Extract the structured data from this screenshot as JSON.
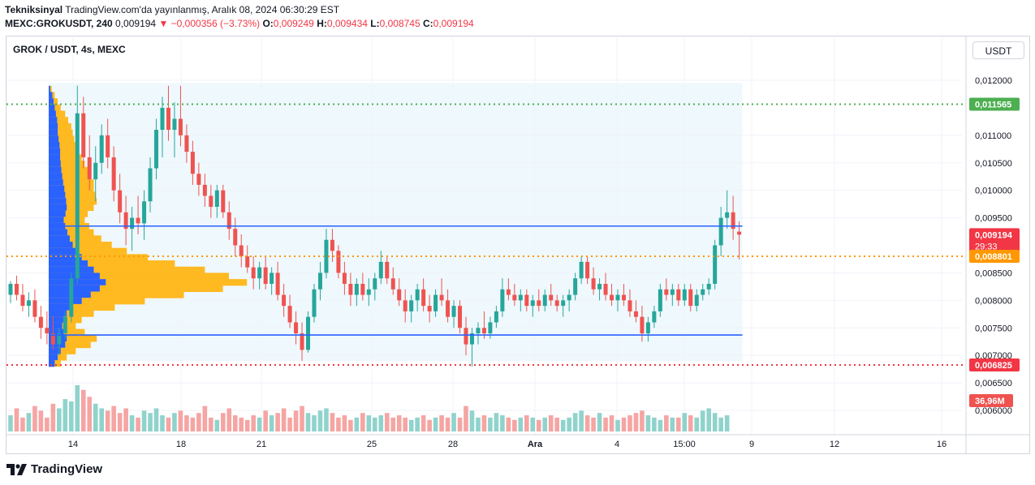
{
  "header": {
    "line1_author": "Tekniksinyal",
    "line1_rest": "TradingView.com'da yayınlanmış, Aralık 08, 2024 06:30:29 EST",
    "symbol_full": "MEXC:GROKUSDT, 240",
    "last": "0,009194",
    "change": "▼ −0,000356 (−3.73%)",
    "o_label": "O:",
    "o": "0,009249",
    "h_label": "H:",
    "h": "0,009434",
    "l_label": "L:",
    "l": "0,008745",
    "c_label": "C:",
    "c": "0,009194"
  },
  "chart_title": "GROK / USDT, 4s, MEXC",
  "currency_button": "USDT",
  "brand": "TradingView",
  "colors": {
    "up": "#26a69a",
    "down": "#ef5350",
    "vol_up": "#8fd3cc",
    "vol_down": "#f5a5a3",
    "profile_blue": "#2962ff",
    "profile_orange": "#ffb921",
    "green_line": "#4caf50",
    "orange_line": "#ff9800",
    "red_line": "#f23645",
    "blue_line": "#2962ff",
    "range_bg": "#eef8fd"
  },
  "chart_data": {
    "type": "candlestick",
    "title": "GROK / USDT, 4s, MEXC",
    "x_ticks": [
      "14",
      "18",
      "21",
      "25",
      "28",
      "Ara",
      "4",
      "15:00",
      "9",
      "12",
      "16"
    ],
    "y_ticks": [
      "0,012000",
      "0,011000",
      "0,010500",
      "0,010000",
      "0,009500",
      "0,008500",
      "0,008000",
      "0,007500",
      "0,007000",
      "0,006500",
      "0,006000"
    ],
    "y_tick_values": [
      0.012,
      0.011,
      0.0105,
      0.01,
      0.0095,
      0.0085,
      0.008,
      0.0075,
      0.007,
      0.0065,
      0.006
    ],
    "ylim": [
      0.0057,
      0.0123
    ],
    "price_levels": [
      {
        "label": "0,011565",
        "value": 0.011565,
        "style": "dotted",
        "color": "#4caf50"
      },
      {
        "label": "0,009194",
        "value": 0.009194,
        "style": "current",
        "color": "#f23645"
      },
      {
        "label": "0,008801",
        "value": 0.008801,
        "style": "dotted",
        "color": "#ff9800"
      },
      {
        "label": "0,006825",
        "value": 0.006825,
        "style": "dotted",
        "color": "#f23645"
      }
    ],
    "countdown": "29:33",
    "volume_label": "36,96M",
    "range_box": {
      "top": 0.01195,
      "bottom": 0.0069
    },
    "range_lines": [
      0.00935,
      0.00737
    ],
    "volume_profile": {
      "price_min": 0.0068,
      "price_max": 0.0119,
      "poc": 0.00797,
      "blue": [
        0.05,
        0.12,
        0.16,
        0.2,
        0.24,
        0.28,
        0.3,
        0.3,
        0.33,
        0.36,
        0.38,
        0.38,
        0.4,
        0.42,
        0.45,
        0.48,
        0.52,
        0.55,
        0.58,
        0.6,
        0.56,
        0.5,
        0.55,
        0.62,
        0.7,
        0.8,
        0.92,
        1.1,
        1.3,
        1.5,
        1.7,
        1.9,
        1.7,
        1.4,
        1.1,
        0.8,
        0.6,
        0.5,
        0.45,
        0.5,
        0.6,
        0.55,
        0.4,
        0.3,
        0.2
      ],
      "orange": [
        0.1,
        0.2,
        0.3,
        0.4,
        0.55,
        0.65,
        0.75,
        0.8,
        0.85,
        0.9,
        1.0,
        1.1,
        1.2,
        1.3,
        1.4,
        1.5,
        1.5,
        1.55,
        1.6,
        1.5,
        1.3,
        1.2,
        1.35,
        1.5,
        1.75,
        2.1,
        2.6,
        3.3,
        4.2,
        5.2,
        6.0,
        6.6,
        5.8,
        4.5,
        3.2,
        2.2,
        1.5,
        1.1,
        0.9,
        1.2,
        1.6,
        1.4,
        0.9,
        0.6,
        0.4
      ]
    },
    "candles": [
      [
        0.0081,
        0.00835,
        0.00795,
        0.0083
      ],
      [
        0.0083,
        0.00845,
        0.008,
        0.0081
      ],
      [
        0.0081,
        0.0083,
        0.0078,
        0.0079
      ],
      [
        0.0079,
        0.00815,
        0.0077,
        0.008
      ],
      [
        0.008,
        0.0082,
        0.0076,
        0.0077
      ],
      [
        0.0077,
        0.0079,
        0.0073,
        0.0075
      ],
      [
        0.0075,
        0.0078,
        0.0072,
        0.0074
      ],
      [
        0.0074,
        0.0077,
        0.0071,
        0.0072
      ],
      [
        0.0072,
        0.0075,
        0.007,
        0.0074
      ],
      [
        0.0074,
        0.0078,
        0.0073,
        0.0077
      ],
      [
        0.0077,
        0.0085,
        0.0076,
        0.0084
      ],
      [
        0.0084,
        0.0119,
        0.0083,
        0.0114
      ],
      [
        0.0114,
        0.0117,
        0.0104,
        0.0106
      ],
      [
        0.0106,
        0.011,
        0.01,
        0.0102
      ],
      [
        0.0102,
        0.0108,
        0.0098,
        0.0105
      ],
      [
        0.0105,
        0.0112,
        0.0103,
        0.011
      ],
      [
        0.011,
        0.0113,
        0.0104,
        0.0106
      ],
      [
        0.0106,
        0.0108,
        0.0098,
        0.01
      ],
      [
        0.01,
        0.0103,
        0.0094,
        0.0096
      ],
      [
        0.0096,
        0.0099,
        0.009,
        0.0093
      ],
      [
        0.0093,
        0.0097,
        0.0089,
        0.0095
      ],
      [
        0.0095,
        0.0099,
        0.0092,
        0.0094
      ],
      [
        0.0094,
        0.01,
        0.0091,
        0.0098
      ],
      [
        0.0098,
        0.0106,
        0.0096,
        0.0104
      ],
      [
        0.0104,
        0.0113,
        0.0102,
        0.0111
      ],
      [
        0.0111,
        0.0117,
        0.0106,
        0.0115
      ],
      [
        0.0115,
        0.0119,
        0.0109,
        0.0111
      ],
      [
        0.0111,
        0.0116,
        0.0106,
        0.0113
      ],
      [
        0.0113,
        0.0119,
        0.0108,
        0.011
      ],
      [
        0.011,
        0.0112,
        0.0105,
        0.0107
      ],
      [
        0.0107,
        0.0109,
        0.0101,
        0.0103
      ],
      [
        0.0103,
        0.0105,
        0.0099,
        0.0101
      ],
      [
        0.0101,
        0.0103,
        0.0097,
        0.0099
      ],
      [
        0.0099,
        0.0101,
        0.0095,
        0.0097
      ],
      [
        0.0097,
        0.0101,
        0.0095,
        0.01
      ],
      [
        0.01,
        0.0101,
        0.0095,
        0.0096
      ],
      [
        0.0096,
        0.0098,
        0.0091,
        0.0093
      ],
      [
        0.0093,
        0.0095,
        0.0088,
        0.009
      ],
      [
        0.009,
        0.0092,
        0.0086,
        0.0088
      ],
      [
        0.0088,
        0.009,
        0.0085,
        0.0086
      ],
      [
        0.0086,
        0.0088,
        0.0082,
        0.0084
      ],
      [
        0.0084,
        0.0087,
        0.0082,
        0.0086
      ],
      [
        0.0086,
        0.0088,
        0.0082,
        0.0083
      ],
      [
        0.0083,
        0.0086,
        0.0081,
        0.0085
      ],
      [
        0.0085,
        0.0087,
        0.008,
        0.0081
      ],
      [
        0.0081,
        0.0083,
        0.0077,
        0.0079
      ],
      [
        0.0079,
        0.0081,
        0.0075,
        0.0076
      ],
      [
        0.0076,
        0.0078,
        0.0072,
        0.0074
      ],
      [
        0.0074,
        0.0076,
        0.0069,
        0.0071
      ],
      [
        0.0071,
        0.0078,
        0.00705,
        0.0077
      ],
      [
        0.0077,
        0.0083,
        0.0076,
        0.0082
      ],
      [
        0.0082,
        0.0087,
        0.008,
        0.0085
      ],
      [
        0.0085,
        0.0093,
        0.0084,
        0.0091
      ],
      [
        0.0091,
        0.0093,
        0.0087,
        0.0089
      ],
      [
        0.0089,
        0.009,
        0.0084,
        0.0085
      ],
      [
        0.0085,
        0.0087,
        0.0081,
        0.0083
      ],
      [
        0.0083,
        0.0085,
        0.0079,
        0.0081
      ],
      [
        0.0081,
        0.0084,
        0.0079,
        0.0083
      ],
      [
        0.0083,
        0.0085,
        0.008,
        0.0081
      ],
      [
        0.0081,
        0.0084,
        0.0079,
        0.0082
      ],
      [
        0.0082,
        0.0085,
        0.008,
        0.0084
      ],
      [
        0.0084,
        0.0089,
        0.0083,
        0.0087
      ],
      [
        0.0087,
        0.0088,
        0.0083,
        0.0084
      ],
      [
        0.0084,
        0.0086,
        0.0081,
        0.0082
      ],
      [
        0.0082,
        0.0084,
        0.0079,
        0.008
      ],
      [
        0.008,
        0.0082,
        0.0076,
        0.0078
      ],
      [
        0.0078,
        0.0081,
        0.0076,
        0.008
      ],
      [
        0.008,
        0.0083,
        0.0078,
        0.0082
      ],
      [
        0.0082,
        0.0084,
        0.0078,
        0.0079
      ],
      [
        0.0079,
        0.0081,
        0.0076,
        0.0078
      ],
      [
        0.0078,
        0.0082,
        0.0077,
        0.0081
      ],
      [
        0.0081,
        0.0084,
        0.0079,
        0.008
      ],
      [
        0.008,
        0.0082,
        0.0076,
        0.0077
      ],
      [
        0.0077,
        0.008,
        0.0075,
        0.0079
      ],
      [
        0.0079,
        0.008,
        0.0074,
        0.0075
      ],
      [
        0.0075,
        0.0077,
        0.007,
        0.0072
      ],
      [
        0.0072,
        0.0075,
        0.0068,
        0.0074
      ],
      [
        0.0074,
        0.0076,
        0.0072,
        0.0075
      ],
      [
        0.0075,
        0.0078,
        0.0073,
        0.0074
      ],
      [
        0.0074,
        0.0077,
        0.0073,
        0.0076
      ],
      [
        0.0076,
        0.0079,
        0.0075,
        0.0078
      ],
      [
        0.0078,
        0.0084,
        0.0077,
        0.0082
      ],
      [
        0.0082,
        0.0084,
        0.008,
        0.0081
      ],
      [
        0.0081,
        0.0083,
        0.0079,
        0.008
      ],
      [
        0.008,
        0.0082,
        0.0078,
        0.0081
      ],
      [
        0.0081,
        0.0082,
        0.0078,
        0.0079
      ],
      [
        0.0079,
        0.0081,
        0.0077,
        0.008
      ],
      [
        0.008,
        0.0082,
        0.0078,
        0.0079
      ],
      [
        0.0079,
        0.0082,
        0.0078,
        0.0081
      ],
      [
        0.0081,
        0.0083,
        0.0079,
        0.008
      ],
      [
        0.008,
        0.0081,
        0.0078,
        0.0079
      ],
      [
        0.0079,
        0.0081,
        0.0077,
        0.008
      ],
      [
        0.008,
        0.0082,
        0.0078,
        0.0081
      ],
      [
        0.0081,
        0.0085,
        0.008,
        0.0084
      ],
      [
        0.0084,
        0.0088,
        0.0083,
        0.0087
      ],
      [
        0.0087,
        0.0088,
        0.0083,
        0.0084
      ],
      [
        0.0084,
        0.0086,
        0.0081,
        0.0082
      ],
      [
        0.0082,
        0.0084,
        0.008,
        0.0083
      ],
      [
        0.0083,
        0.0085,
        0.008,
        0.0081
      ],
      [
        0.0081,
        0.0083,
        0.0079,
        0.008
      ],
      [
        0.008,
        0.0082,
        0.0078,
        0.0081
      ],
      [
        0.0081,
        0.0083,
        0.0079,
        0.008
      ],
      [
        0.008,
        0.0082,
        0.0077,
        0.0078
      ],
      [
        0.0078,
        0.008,
        0.0076,
        0.0077
      ],
      [
        0.0077,
        0.0079,
        0.00725,
        0.0074
      ],
      [
        0.0074,
        0.0077,
        0.00725,
        0.0076
      ],
      [
        0.0076,
        0.0079,
        0.0075,
        0.0078
      ],
      [
        0.0078,
        0.0083,
        0.0077,
        0.0082
      ],
      [
        0.0082,
        0.0084,
        0.008,
        0.0081
      ],
      [
        0.0081,
        0.0083,
        0.0079,
        0.0082
      ],
      [
        0.0082,
        0.0083,
        0.0079,
        0.008
      ],
      [
        0.008,
        0.0083,
        0.0079,
        0.0082
      ],
      [
        0.0082,
        0.0083,
        0.0078,
        0.0079
      ],
      [
        0.0079,
        0.0082,
        0.0078,
        0.0081
      ],
      [
        0.0081,
        0.0083,
        0.008,
        0.0082
      ],
      [
        0.0082,
        0.0084,
        0.0081,
        0.0083
      ],
      [
        0.0083,
        0.0091,
        0.0082,
        0.009
      ],
      [
        0.009,
        0.0097,
        0.0088,
        0.0095
      ],
      [
        0.0095,
        0.01,
        0.0093,
        0.0096
      ],
      [
        0.0096,
        0.0099,
        0.0091,
        0.0093
      ],
      [
        0.009249,
        0.009434,
        0.008745,
        0.009194
      ]
    ],
    "volumes": [
      0.35,
      0.5,
      0.3,
      0.4,
      0.55,
      0.45,
      0.3,
      0.6,
      0.5,
      0.7,
      0.65,
      1.0,
      0.9,
      0.75,
      0.6,
      0.5,
      0.45,
      0.55,
      0.4,
      0.5,
      0.35,
      0.3,
      0.45,
      0.4,
      0.5,
      0.35,
      0.3,
      0.4,
      0.45,
      0.35,
      0.3,
      0.4,
      0.55,
      0.3,
      0.25,
      0.4,
      0.5,
      0.35,
      0.3,
      0.25,
      0.35,
      0.3,
      0.45,
      0.35,
      0.4,
      0.5,
      0.3,
      0.45,
      0.55,
      0.4,
      0.35,
      0.45,
      0.5,
      0.4,
      0.3,
      0.35,
      0.25,
      0.3,
      0.4,
      0.35,
      0.3,
      0.35,
      0.4,
      0.3,
      0.35,
      0.3,
      0.25,
      0.3,
      0.35,
      0.25,
      0.3,
      0.35,
      0.3,
      0.4,
      0.3,
      0.55,
      0.45,
      0.3,
      0.35,
      0.3,
      0.4,
      0.35,
      0.3,
      0.25,
      0.3,
      0.35,
      0.3,
      0.25,
      0.3,
      0.35,
      0.3,
      0.25,
      0.3,
      0.4,
      0.45,
      0.35,
      0.3,
      0.4,
      0.3,
      0.35,
      0.25,
      0.3,
      0.35,
      0.4,
      0.45,
      0.35,
      0.3,
      0.25,
      0.35,
      0.3,
      0.3,
      0.4,
      0.35,
      0.3,
      0.45,
      0.5,
      0.4,
      0.3,
      0.35
    ]
  }
}
